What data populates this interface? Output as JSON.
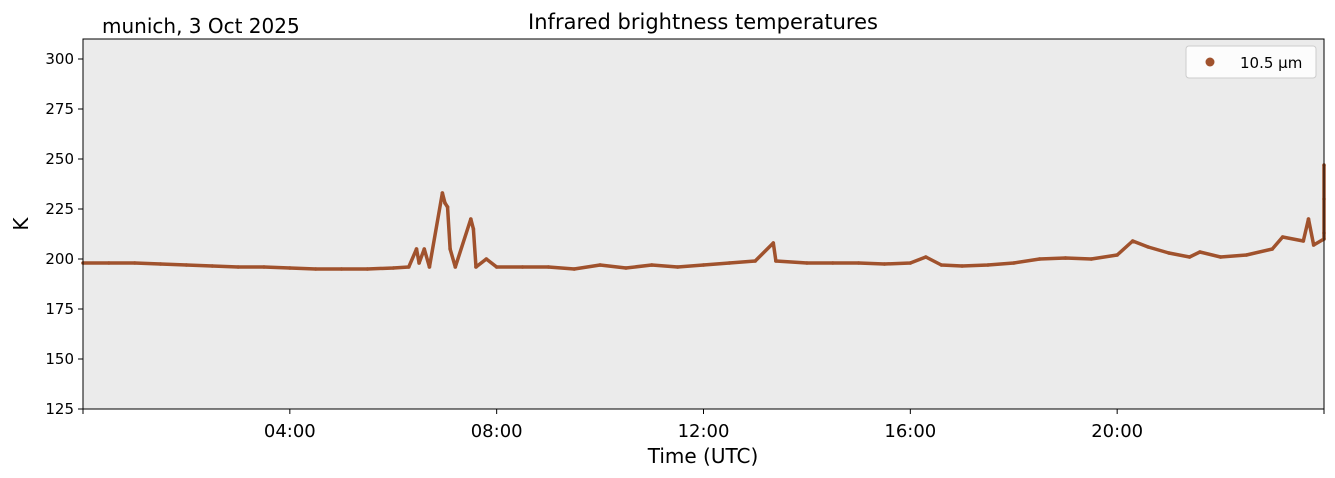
{
  "header": {
    "location_date": "munich, 3 Oct 2025"
  },
  "chart_data": {
    "type": "scatter",
    "title": "Infrared brightness temperatures",
    "xlabel": "Time (UTC)",
    "ylabel": "K",
    "x_unit": "hours UTC",
    "xlim": [
      0,
      24
    ],
    "ylim": [
      125,
      310
    ],
    "x_ticks": [
      {
        "value": 4,
        "label": "04:00"
      },
      {
        "value": 8,
        "label": "08:00"
      },
      {
        "value": 12,
        "label": "12:00"
      },
      {
        "value": 16,
        "label": "16:00"
      },
      {
        "value": 20,
        "label": "20:00"
      }
    ],
    "y_ticks": [
      125,
      150,
      175,
      200,
      225,
      250,
      275,
      300
    ],
    "background_color": "#ebebeb",
    "legend_position": "top-right",
    "series": [
      {
        "name": "10.5 µm",
        "color": "#a0522d",
        "points": [
          [
            0.0,
            198
          ],
          [
            0.5,
            198
          ],
          [
            1.0,
            198
          ],
          [
            1.5,
            197.5
          ],
          [
            2.0,
            197
          ],
          [
            2.5,
            196.5
          ],
          [
            3.0,
            196
          ],
          [
            3.5,
            196
          ],
          [
            4.0,
            195.5
          ],
          [
            4.5,
            195
          ],
          [
            5.0,
            195
          ],
          [
            5.5,
            195
          ],
          [
            6.0,
            195.5
          ],
          [
            6.3,
            196
          ],
          [
            6.45,
            205
          ],
          [
            6.5,
            198
          ],
          [
            6.6,
            205
          ],
          [
            6.7,
            196
          ],
          [
            6.95,
            233
          ],
          [
            7.0,
            228
          ],
          [
            7.05,
            226
          ],
          [
            7.1,
            205
          ],
          [
            7.2,
            196
          ],
          [
            7.5,
            220
          ],
          [
            7.55,
            215
          ],
          [
            7.6,
            196
          ],
          [
            7.8,
            200
          ],
          [
            8.0,
            196
          ],
          [
            8.5,
            196
          ],
          [
            9.0,
            196
          ],
          [
            9.5,
            195
          ],
          [
            10.0,
            197
          ],
          [
            10.5,
            195.5
          ],
          [
            11.0,
            197
          ],
          [
            11.5,
            196
          ],
          [
            12.0,
            197
          ],
          [
            12.5,
            198
          ],
          [
            13.0,
            199
          ],
          [
            13.35,
            208
          ],
          [
            13.4,
            199
          ],
          [
            14.0,
            198
          ],
          [
            14.5,
            198
          ],
          [
            15.0,
            198
          ],
          [
            15.5,
            197.5
          ],
          [
            16.0,
            198
          ],
          [
            16.3,
            201
          ],
          [
            16.6,
            197
          ],
          [
            17.0,
            196.5
          ],
          [
            17.5,
            197
          ],
          [
            18.0,
            198
          ],
          [
            18.5,
            200
          ],
          [
            19.0,
            200.5
          ],
          [
            19.5,
            200
          ],
          [
            20.0,
            202
          ],
          [
            20.3,
            209
          ],
          [
            20.6,
            206
          ],
          [
            21.0,
            203
          ],
          [
            21.4,
            201
          ],
          [
            21.6,
            203.5
          ],
          [
            22.0,
            201
          ],
          [
            22.5,
            202
          ],
          [
            23.0,
            205
          ],
          [
            23.2,
            211
          ],
          [
            23.6,
            209
          ],
          [
            23.7,
            220
          ],
          [
            23.8,
            207
          ],
          [
            24.0,
            210
          ],
          [
            24.05,
            213
          ],
          [
            24.1,
            230
          ],
          [
            24.15,
            247
          ]
        ]
      }
    ]
  }
}
